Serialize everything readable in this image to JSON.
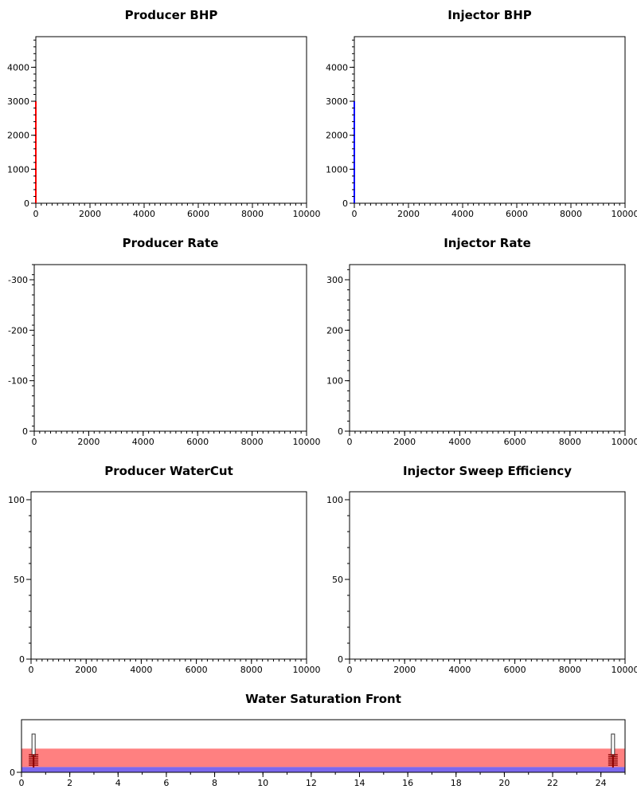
{
  "chart_data": [
    {
      "type": "line",
      "title": "Producer BHP",
      "xlim": [
        0,
        10000
      ],
      "ylim": [
        0,
        4900
      ],
      "x_ticks": [
        0,
        2000,
        4000,
        6000,
        8000,
        10000
      ],
      "y_ticks": [
        0,
        1000,
        2000,
        3000,
        4000
      ],
      "tick_labels_x": [
        "0",
        "2000",
        "4000",
        "6000",
        "8000",
        "10000"
      ],
      "tick_labels_y": [
        "0",
        "1000",
        "2000",
        "3000",
        "4000"
      ],
      "series": [
        {
          "color": "#ff0000",
          "x": [
            0,
            0
          ],
          "y": [
            0,
            3000
          ]
        }
      ]
    },
    {
      "type": "line",
      "title": "Injector BHP",
      "xlim": [
        0,
        10000
      ],
      "ylim": [
        0,
        4900
      ],
      "x_ticks": [
        0,
        2000,
        4000,
        6000,
        8000,
        10000
      ],
      "y_ticks": [
        0,
        1000,
        2000,
        3000,
        4000
      ],
      "tick_labels_x": [
        "0",
        "2000",
        "4000",
        "6000",
        "8000",
        "10000"
      ],
      "tick_labels_y": [
        "0",
        "1000",
        "2000",
        "3000",
        "4000"
      ],
      "series": [
        {
          "color": "#0000ff",
          "x": [
            0,
            0
          ],
          "y": [
            0,
            3000
          ]
        }
      ]
    },
    {
      "type": "line",
      "title": "Producer Rate",
      "xlim": [
        0,
        10000
      ],
      "ylim": [
        0,
        -330
      ],
      "x_ticks": [
        0,
        2000,
        4000,
        6000,
        8000,
        10000
      ],
      "y_ticks": [
        0,
        -100,
        -200,
        -300
      ],
      "tick_labels_x": [
        "0",
        "2000",
        "4000",
        "6000",
        "8000",
        "10000"
      ],
      "tick_labels_y": [
        "0",
        "-100",
        "-200",
        "-300"
      ],
      "series": []
    },
    {
      "type": "line",
      "title": "Injector Rate",
      "xlim": [
        0,
        10000
      ],
      "ylim": [
        0,
        330
      ],
      "x_ticks": [
        0,
        2000,
        4000,
        6000,
        8000,
        10000
      ],
      "y_ticks": [
        0,
        100,
        200,
        300
      ],
      "tick_labels_x": [
        "0",
        "2000",
        "4000",
        "6000",
        "8000",
        "10000"
      ],
      "tick_labels_y": [
        "0",
        "100",
        "200",
        "300"
      ],
      "series": []
    },
    {
      "type": "line",
      "title": "Producer WaterCut",
      "xlim": [
        0,
        10000
      ],
      "ylim": [
        0,
        105
      ],
      "x_ticks": [
        0,
        2000,
        4000,
        6000,
        8000,
        10000
      ],
      "y_ticks": [
        0,
        50,
        100
      ],
      "tick_labels_x": [
        "0",
        "2000",
        "4000",
        "6000",
        "8000",
        "10000"
      ],
      "tick_labels_y": [
        "0",
        "50",
        "100"
      ],
      "series": []
    },
    {
      "type": "line",
      "title": "Injector Sweep Efficiency",
      "xlim": [
        0,
        10000
      ],
      "ylim": [
        0,
        105
      ],
      "x_ticks": [
        0,
        2000,
        4000,
        6000,
        8000,
        10000
      ],
      "y_ticks": [
        0,
        50,
        100
      ],
      "tick_labels_x": [
        "0",
        "2000",
        "4000",
        "6000",
        "8000",
        "10000"
      ],
      "tick_labels_y": [
        "0",
        "50",
        "100"
      ],
      "series": []
    },
    {
      "type": "area",
      "title": "Water Saturation Front",
      "xlim": [
        0,
        25
      ],
      "ylim": [
        0,
        1
      ],
      "x_ticks": [
        0,
        2,
        4,
        6,
        8,
        10,
        12,
        14,
        16,
        18,
        20,
        22,
        24
      ],
      "y_ticks": [
        0
      ],
      "tick_labels_x": [
        "0",
        "2",
        "4",
        "6",
        "8",
        "10",
        "12",
        "14",
        "16",
        "18",
        "20",
        "22",
        "24"
      ],
      "tick_labels_y": [
        "0"
      ],
      "bands": [
        {
          "color": "#ff8080",
          "y": [
            0.1,
            0.45
          ]
        },
        {
          "color": "#7b68ee",
          "y": [
            0,
            0.1
          ]
        }
      ],
      "wells": [
        {
          "x": 0.5
        },
        {
          "x": 24.5
        }
      ],
      "well_color": "#8b0000"
    }
  ]
}
